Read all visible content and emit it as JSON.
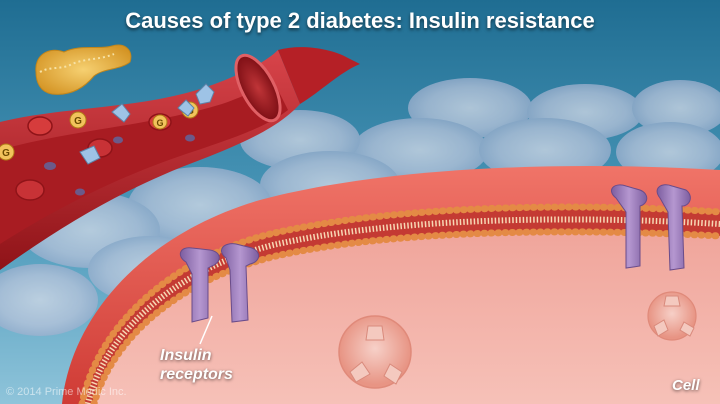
{
  "title": "Causes of type 2 diabetes: Insulin resistance",
  "labels": {
    "receptors_line1": "Insulin",
    "receptors_line2": "receptors",
    "cell": "Cell"
  },
  "copyright": "© 2014 Prime Medic Inc.",
  "glucose_marker": "G",
  "colors": {
    "background_top": "#1f6d92",
    "background_bottom": "#8fc4da",
    "membrane": "#d8473f",
    "cytoplasm": "#f4b3ab",
    "phospholipid_head": "#e48a45",
    "receptor": "#9b78b8",
    "vessel": "#b52026",
    "pancreas": "#e7b23a"
  },
  "icons": [
    "pancreas-icon",
    "blood-vessel-illustration",
    "glucose-molecule-icon",
    "insulin-molecule-icon",
    "insulin-receptor-icon",
    "glucose-transporter-icon",
    "cell-membrane-illustration"
  ]
}
